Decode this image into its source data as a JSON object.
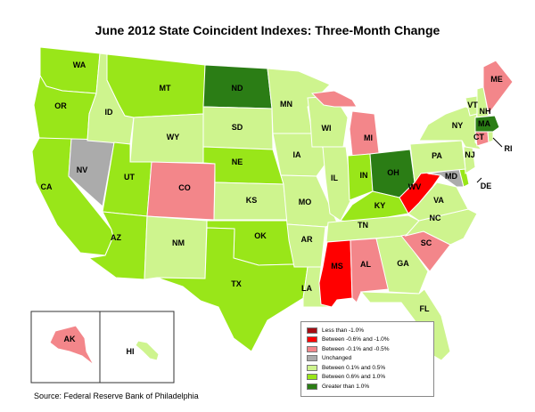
{
  "title": "June 2012 State Coincident Indexes: Three-Month Change",
  "source": "Source: Federal Reserve Bank of Philadelphia",
  "colors": {
    "lt_neg1": "#a50e14",
    "neg06_neg1": "#ff0000",
    "neg01_neg05": "#f3868a",
    "unchanged": "#ababab",
    "p01_p05": "#cef48e",
    "p06_p10": "#99e619",
    "gt_p1": "#2b7d15"
  },
  "legend": [
    {
      "key": "lt_neg1",
      "label": "Less than -1.0%"
    },
    {
      "key": "neg06_neg1",
      "label": "Between -0.6% and -1.0%"
    },
    {
      "key": "neg01_neg05",
      "label": "Between -0.1% and -0.5%"
    },
    {
      "key": "unchanged",
      "label": "Unchanged"
    },
    {
      "key": "p01_p05",
      "label": "Between 0.1% and 0.5%"
    },
    {
      "key": "p06_p10",
      "label": "Between 0.6% and 1.0%"
    },
    {
      "key": "gt_p1",
      "label": "Greater than 1.0%"
    }
  ],
  "states": [
    {
      "code": "WA",
      "category": "p06_p10"
    },
    {
      "code": "OR",
      "category": "p06_p10"
    },
    {
      "code": "CA",
      "category": "p06_p10"
    },
    {
      "code": "NV",
      "category": "unchanged"
    },
    {
      "code": "ID",
      "category": "p01_p05"
    },
    {
      "code": "MT",
      "category": "p06_p10"
    },
    {
      "code": "WY",
      "category": "p01_p05"
    },
    {
      "code": "UT",
      "category": "p06_p10"
    },
    {
      "code": "AZ",
      "category": "p06_p10"
    },
    {
      "code": "CO",
      "category": "neg01_neg05"
    },
    {
      "code": "NM",
      "category": "p01_p05"
    },
    {
      "code": "ND",
      "category": "gt_p1"
    },
    {
      "code": "SD",
      "category": "p01_p05"
    },
    {
      "code": "NE",
      "category": "p06_p10"
    },
    {
      "code": "KS",
      "category": "p01_p05"
    },
    {
      "code": "OK",
      "category": "p06_p10"
    },
    {
      "code": "TX",
      "category": "p06_p10"
    },
    {
      "code": "MN",
      "category": "p01_p05"
    },
    {
      "code": "IA",
      "category": "p01_p05"
    },
    {
      "code": "MO",
      "category": "p01_p05"
    },
    {
      "code": "AR",
      "category": "p01_p05"
    },
    {
      "code": "LA",
      "category": "p01_p05"
    },
    {
      "code": "WI",
      "category": "p01_p05"
    },
    {
      "code": "IL",
      "category": "p01_p05"
    },
    {
      "code": "MI",
      "category": "neg01_neg05"
    },
    {
      "code": "IN",
      "category": "p06_p10"
    },
    {
      "code": "OH",
      "category": "gt_p1"
    },
    {
      "code": "KY",
      "category": "p06_p10"
    },
    {
      "code": "TN",
      "category": "p01_p05"
    },
    {
      "code": "MS",
      "category": "neg06_neg1"
    },
    {
      "code": "AL",
      "category": "neg01_neg05"
    },
    {
      "code": "GA",
      "category": "p01_p05"
    },
    {
      "code": "FL",
      "category": "p01_p05"
    },
    {
      "code": "SC",
      "category": "neg01_neg05"
    },
    {
      "code": "NC",
      "category": "p01_p05"
    },
    {
      "code": "VA",
      "category": "p01_p05"
    },
    {
      "code": "WV",
      "category": "neg06_neg1"
    },
    {
      "code": "MD",
      "category": "unchanged"
    },
    {
      "code": "DE",
      "category": "p06_p10"
    },
    {
      "code": "NJ",
      "category": "p01_p05"
    },
    {
      "code": "PA",
      "category": "p01_p05"
    },
    {
      "code": "NY",
      "category": "p01_p05"
    },
    {
      "code": "VT",
      "category": "p01_p05"
    },
    {
      "code": "NH",
      "category": "p01_p05"
    },
    {
      "code": "ME",
      "category": "neg01_neg05"
    },
    {
      "code": "MA",
      "category": "gt_p1"
    },
    {
      "code": "CT",
      "category": "neg01_neg05"
    },
    {
      "code": "RI",
      "category": "p01_p05"
    },
    {
      "code": "AK",
      "category": "neg01_neg05"
    },
    {
      "code": "HI",
      "category": "p01_p05"
    }
  ]
}
